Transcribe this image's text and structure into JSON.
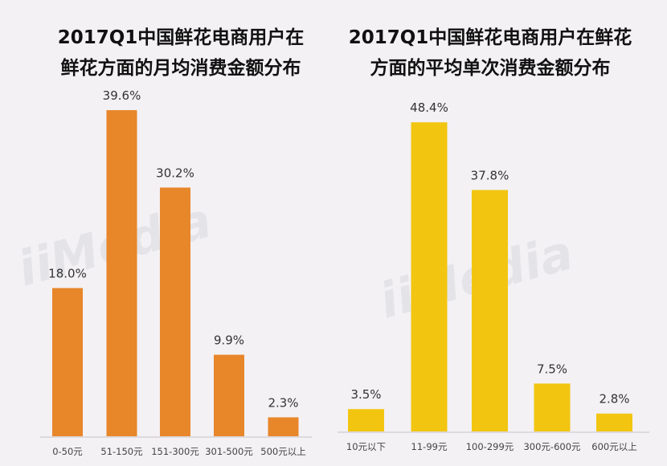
{
  "chart_data": [
    {
      "type": "bar",
      "title": "2017Q1中国鲜花电商用户在鲜花方面的月均消费金额分布",
      "title_lines": [
        "2017Q1中国鲜花电商用户在",
        "鲜花方面的月均消费金额分布"
      ],
      "categories": [
        "0-50元",
        "51-150元",
        "151-300元",
        "301-500元",
        "500元以上"
      ],
      "values": [
        18.0,
        39.6,
        30.2,
        9.9,
        2.3
      ],
      "data_labels": [
        "18.0%",
        "39.6%",
        "30.2%",
        "9.9%",
        "2.3%"
      ],
      "color": "#e8862a",
      "grid": false
    },
    {
      "type": "bar",
      "title": "2017Q1中国鲜花电商用户在鲜花方面的平均单次消费金额分布",
      "title_lines": [
        "2017Q1中国鲜花电商用户在鲜花",
        "方面的平均单次消费金额分布"
      ],
      "categories": [
        "10元以下",
        "11-99元",
        "100-299元",
        "300元-600元",
        "600元以上"
      ],
      "values": [
        3.5,
        48.4,
        37.8,
        7.5,
        2.8
      ],
      "data_labels": [
        "3.5%",
        "48.4%",
        "37.8%",
        "7.5%",
        "2.8%"
      ],
      "color": "#f2c511",
      "grid": false
    }
  ],
  "watermark": "iiMedia Research 艾媒咨询"
}
